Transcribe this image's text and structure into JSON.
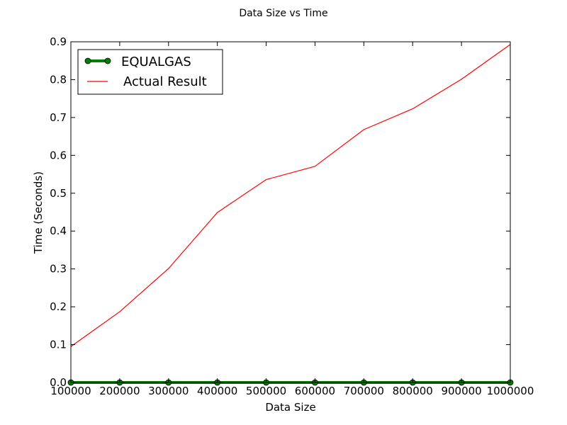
{
  "chart_data": {
    "type": "line",
    "title": "Data Size vs Time",
    "xlabel": "Data Size",
    "ylabel": "Time (Seconds)",
    "xlim": [
      100000,
      1000000
    ],
    "ylim": [
      0.0,
      0.9
    ],
    "x_ticks": [
      "100000",
      "200000",
      "300000",
      "400000",
      "500000",
      "600000",
      "700000",
      "800000",
      "900000",
      "1000000"
    ],
    "y_ticks": [
      "0.0",
      "0.1",
      "0.2",
      "0.3",
      "0.4",
      "0.5",
      "0.6",
      "0.7",
      "0.8",
      "0.9"
    ],
    "grid": false,
    "legend_position": "top-left",
    "x": [
      100000,
      200000,
      300000,
      400000,
      500000,
      600000,
      700000,
      800000,
      900000,
      1000000
    ],
    "series": [
      {
        "name": "EQUALGAS",
        "color": "#007f00",
        "marker": "circle",
        "values": [
          0.0,
          0.0,
          0.0,
          0.0,
          0.0,
          0.0,
          0.0,
          0.0,
          0.0,
          0.0
        ]
      },
      {
        "name": "Actual Result",
        "color": "#ff0000",
        "marker": "none",
        "values": [
          0.095,
          0.187,
          0.301,
          0.449,
          0.536,
          0.571,
          0.668,
          0.723,
          0.801,
          0.893
        ]
      }
    ]
  }
}
